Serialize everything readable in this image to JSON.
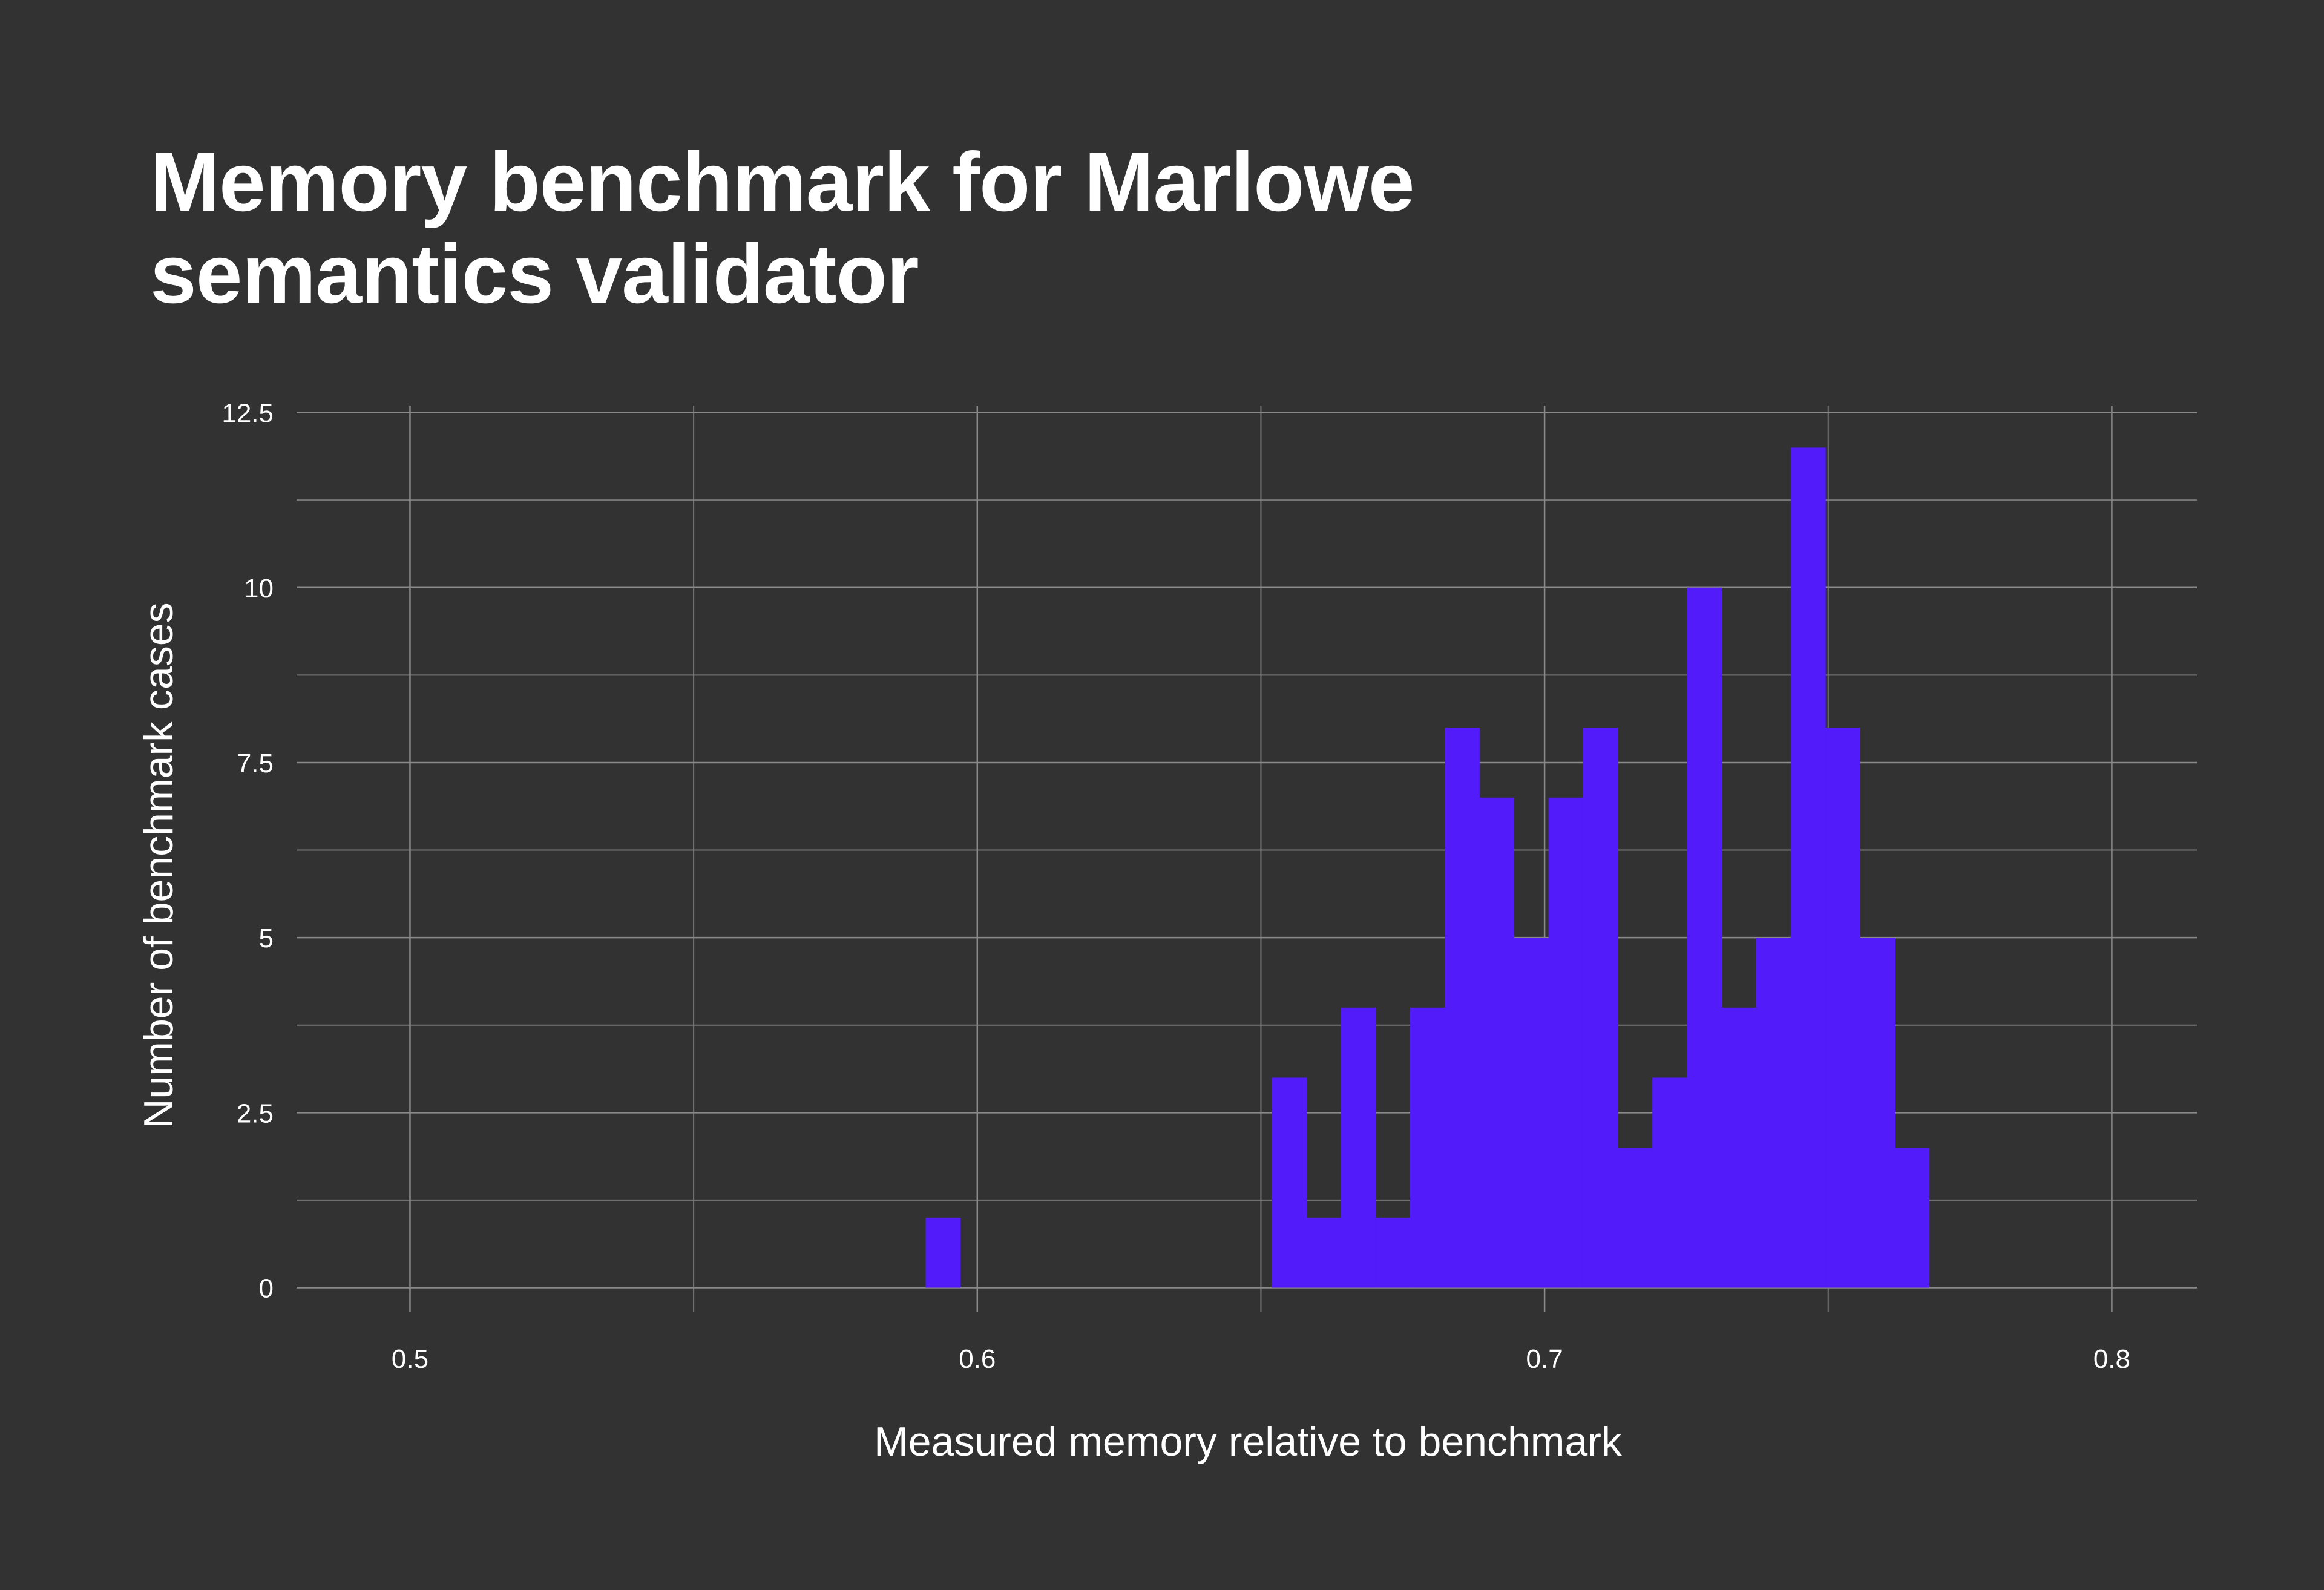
{
  "chart_data": {
    "type": "bar",
    "title_lines": [
      "Memory benchmark for Marlowe",
      "semantics validator"
    ],
    "xlabel": "Measured memory relative to benchmark",
    "ylabel": "Number of benchmark cases",
    "xlim": [
      0.48,
      0.815
    ],
    "ylim": [
      -0.35,
      12.6
    ],
    "x_ticks": [
      0.5,
      0.6,
      0.7,
      0.8
    ],
    "x_tick_labels": [
      "0.5",
      "0.6",
      "0.7",
      "0.8"
    ],
    "x_minor_ticks": [
      0.55,
      0.65,
      0.75
    ],
    "y_ticks": [
      0,
      2.5,
      5,
      7.5,
      10,
      12.5
    ],
    "y_tick_labels": [
      "0",
      "2.5",
      "5",
      "7.5",
      "10",
      "12.5"
    ],
    "y_minor_ticks": [
      1.25,
      3.75,
      6.25,
      8.75,
      11.25
    ],
    "grid": true,
    "bar_color": "#521bf9",
    "background": "#323232",
    "grid_color": "#8a8a8a",
    "bins": [
      {
        "x0": 0.5909,
        "x1": 0.597,
        "count": 1
      },
      {
        "x0": 0.6519,
        "x1": 0.658,
        "count": 3
      },
      {
        "x0": 0.658,
        "x1": 0.6641,
        "count": 1
      },
      {
        "x0": 0.6641,
        "x1": 0.6702,
        "count": 4
      },
      {
        "x0": 0.6702,
        "x1": 0.6763,
        "count": 1
      },
      {
        "x0": 0.6763,
        "x1": 0.6824,
        "count": 4
      },
      {
        "x0": 0.6824,
        "x1": 0.6885,
        "count": 8
      },
      {
        "x0": 0.6885,
        "x1": 0.6946,
        "count": 7
      },
      {
        "x0": 0.6946,
        "x1": 0.7007,
        "count": 5
      },
      {
        "x0": 0.7007,
        "x1": 0.7068,
        "count": 7
      },
      {
        "x0": 0.7068,
        "x1": 0.7129,
        "count": 8
      },
      {
        "x0": 0.7129,
        "x1": 0.719,
        "count": 2
      },
      {
        "x0": 0.719,
        "x1": 0.7251,
        "count": 3
      },
      {
        "x0": 0.7251,
        "x1": 0.7312,
        "count": 10
      },
      {
        "x0": 0.7312,
        "x1": 0.7373,
        "count": 4
      },
      {
        "x0": 0.7373,
        "x1": 0.7434,
        "count": 5
      },
      {
        "x0": 0.7434,
        "x1": 0.7495,
        "count": 12
      },
      {
        "x0": 0.7495,
        "x1": 0.7556,
        "count": 8
      },
      {
        "x0": 0.7556,
        "x1": 0.7617,
        "count": 5
      },
      {
        "x0": 0.7617,
        "x1": 0.7678,
        "count": 2
      }
    ]
  }
}
